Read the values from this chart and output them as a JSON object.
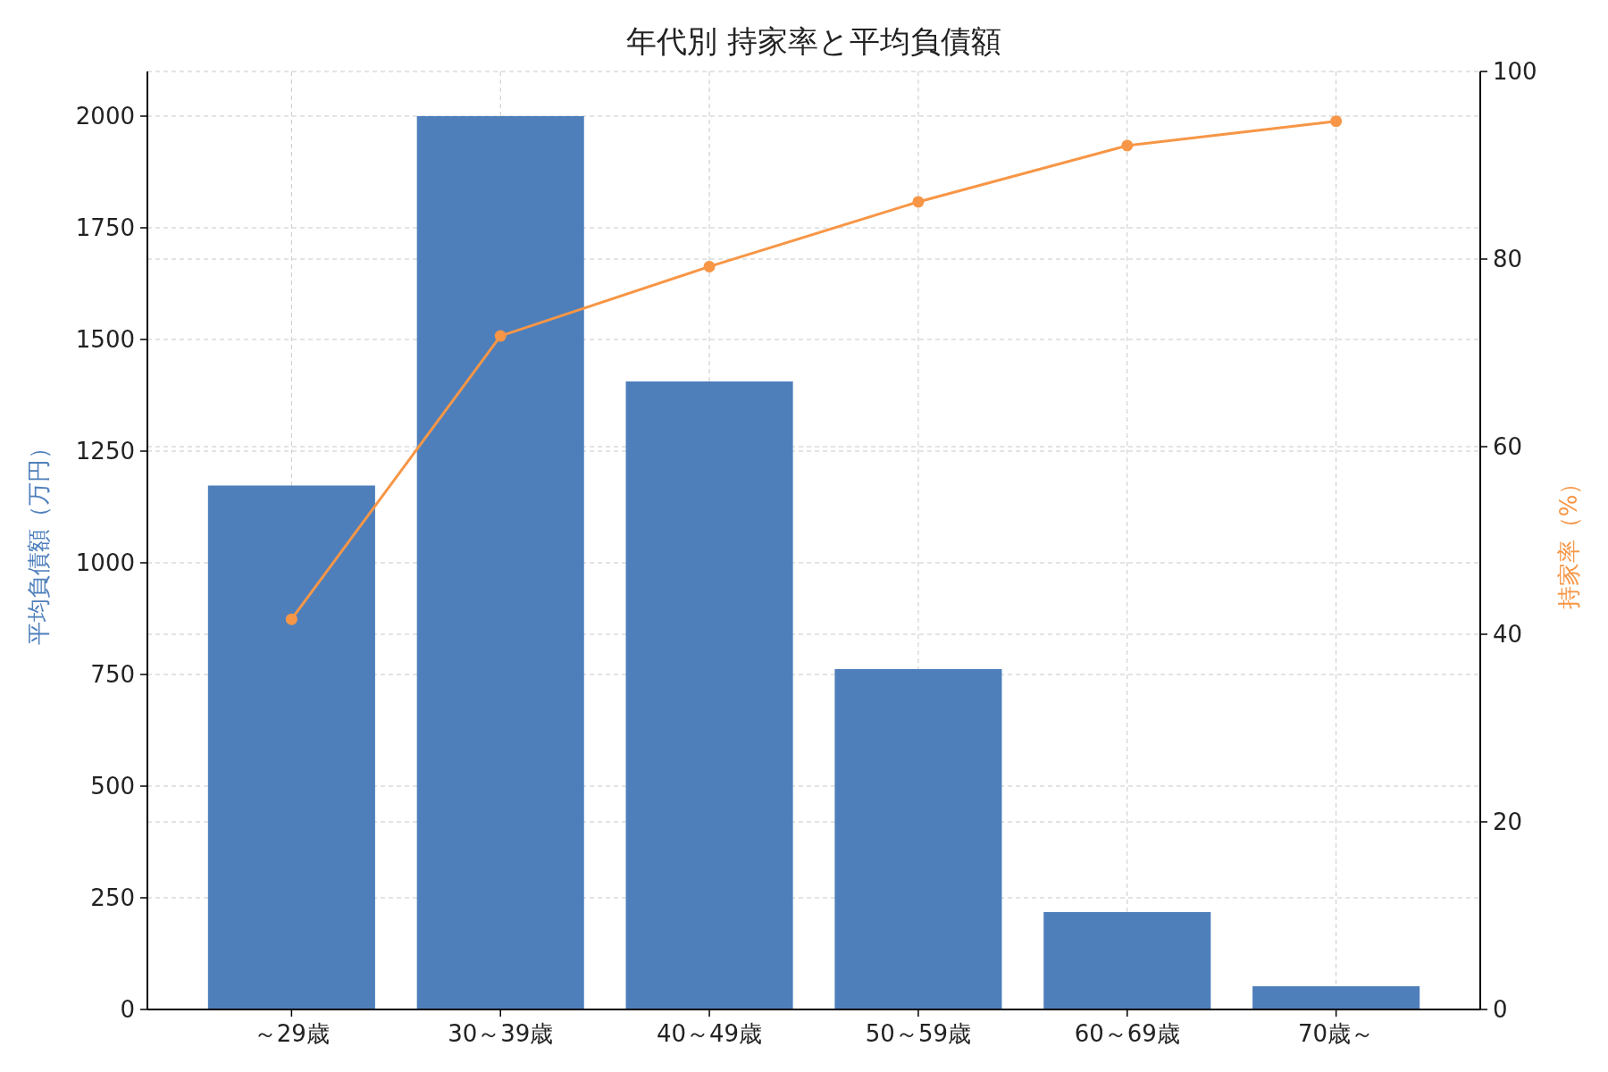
{
  "chart_data": {
    "type": "bar",
    "title": "年代別 持家率と平均負債額",
    "categories": [
      "～29歳",
      "30～39歳",
      "40～49歳",
      "50～59歳",
      "60～69歳",
      "70歳～"
    ],
    "ylabel": "平均負債額（万円）",
    "y2label": "持家率（%）",
    "ylim": [
      0,
      2100
    ],
    "yticks": [
      0,
      250,
      500,
      750,
      1000,
      1250,
      1500,
      1750,
      2000
    ],
    "y2lim": [
      0,
      100
    ],
    "y2ticks": [
      0,
      20,
      40,
      60,
      80,
      100
    ],
    "grid": true,
    "marker": "circle",
    "line_style": "solid",
    "series": [
      {
        "color": "#4e7fbb",
        "values": [
          1173,
          2000,
          1406,
          762,
          218,
          52
        ]
      },
      {
        "type": "line",
        "axis": "y2",
        "color": "#f79646",
        "values": [
          41.6,
          71.8,
          79.2,
          86.1,
          92.1,
          94.7
        ]
      }
    ]
  }
}
